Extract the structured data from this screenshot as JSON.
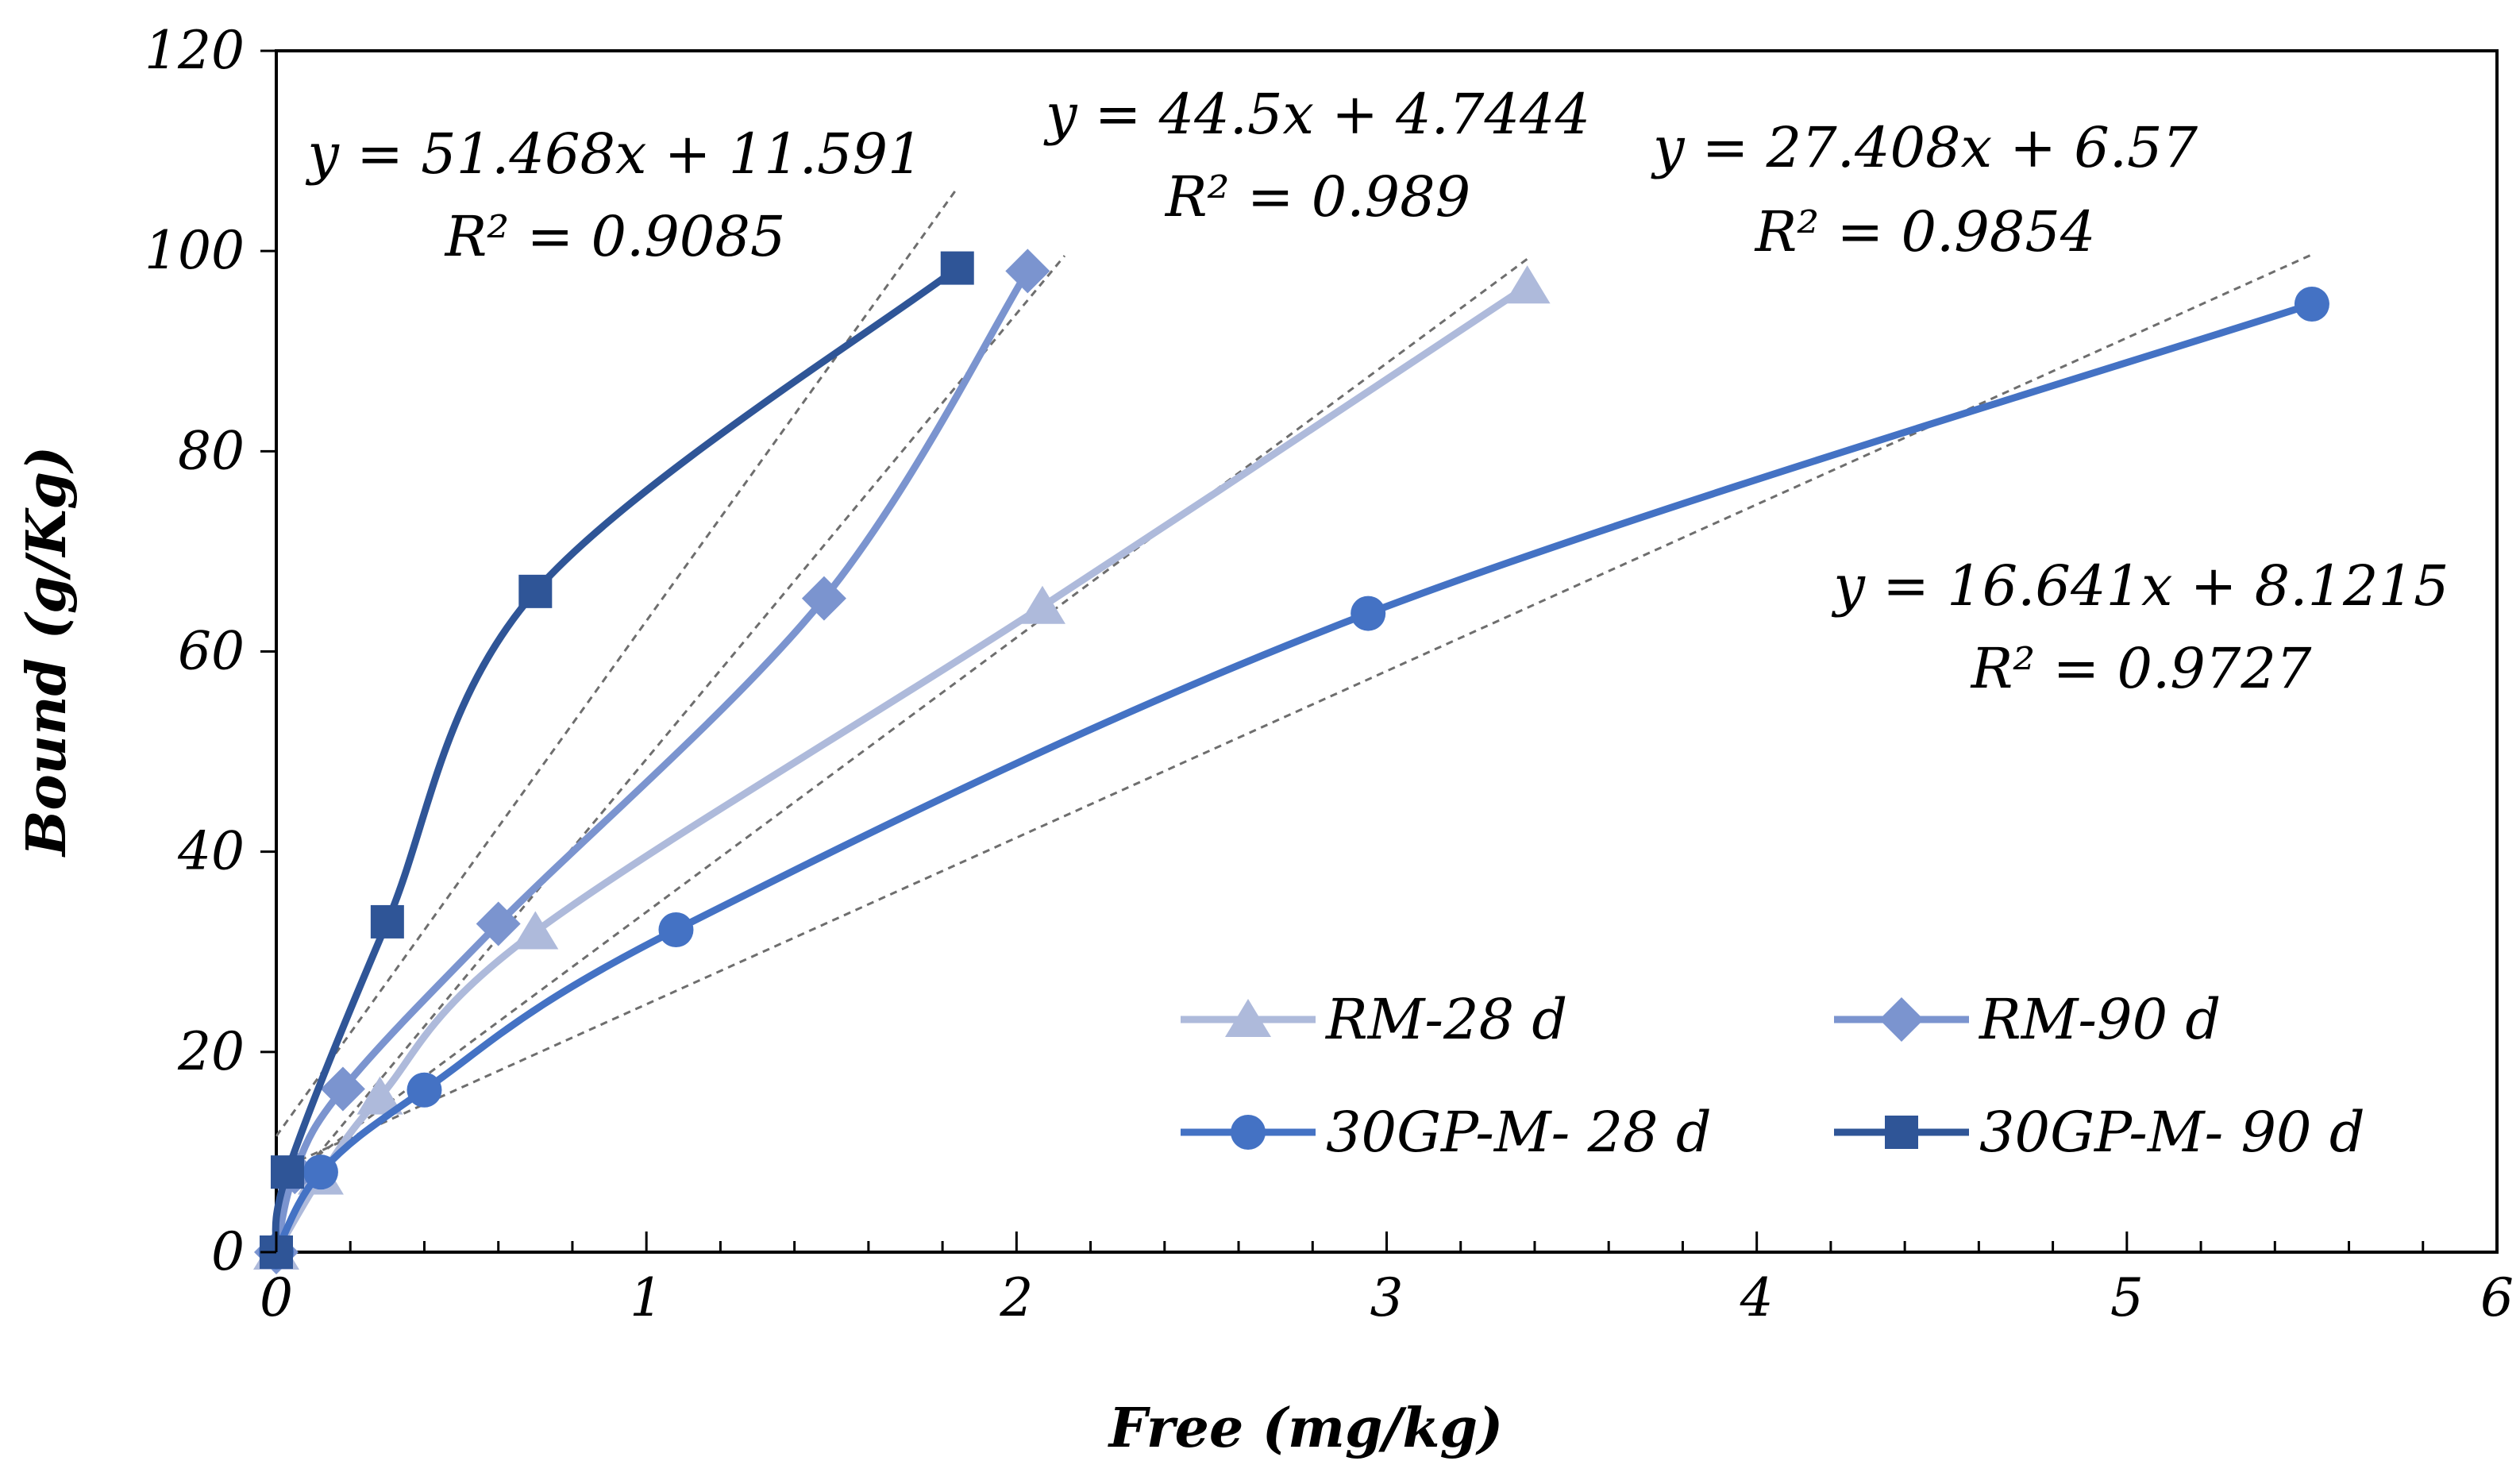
{
  "chart_data": {
    "type": "scatter",
    "title": "",
    "xlabel": "Free (mg/kg)",
    "ylabel": "Bound (g/Kg)",
    "xlim": [
      0,
      6
    ],
    "ylim": [
      0,
      120
    ],
    "x_ticks": [
      "0",
      "1",
      "2",
      "3",
      "4",
      "5",
      "6"
    ],
    "y_ticks": [
      "0",
      "20",
      "40",
      "60",
      "80",
      "100",
      "120"
    ],
    "grid": false,
    "legend_position": "lower-right",
    "series": [
      {
        "name": "RM-28 d",
        "color": "#aebadb",
        "marker": "triangle",
        "x": [
          0,
          0.12,
          0.28,
          0.7,
          2.07,
          3.38
        ],
        "y": [
          0,
          7.5,
          15.5,
          32,
          64.5,
          96.5
        ]
      },
      {
        "name": "RM-90 d",
        "color": "#7b94cf",
        "marker": "diamond",
        "x": [
          0,
          0.05,
          0.18,
          0.6,
          1.48,
          2.03
        ],
        "y": [
          0,
          8,
          16.3,
          32.8,
          65.3,
          98
        ]
      },
      {
        "name": "30GP-M- 28 d",
        "color": "#4472c4",
        "marker": "circle",
        "x": [
          0,
          0.12,
          0.4,
          1.08,
          2.95,
          5.5
        ],
        "y": [
          0,
          8,
          16.2,
          32.2,
          63.8,
          94.7
        ]
      },
      {
        "name": "30GP-M- 90 d",
        "color": "#2f5597",
        "marker": "square",
        "x": [
          0,
          0.03,
          0.3,
          0.7,
          1.84
        ],
        "y": [
          0,
          8,
          33,
          66,
          98.3
        ]
      }
    ],
    "trendlines": [
      {
        "series": "30GP-M- 90 d",
        "slope": 51.468,
        "intercept": 11.591,
        "x_range": [
          0,
          1.84
        ],
        "equation": "y = 51.468x + 11.591",
        "r2": "R² = 0.9085"
      },
      {
        "series": "RM-90 d",
        "slope": 44.5,
        "intercept": 4.7444,
        "x_range": [
          0,
          2.13
        ],
        "equation": "y = 44.5x + 4.7444",
        "r2": "R² = 0.989"
      },
      {
        "series": "RM-28 d",
        "slope": 27.408,
        "intercept": 6.57,
        "x_range": [
          0,
          3.38
        ],
        "equation": "y = 27.408x + 6.57",
        "r2": "R² = 0.9854"
      },
      {
        "series": "30GP-M- 28 d",
        "slope": 16.641,
        "intercept": 8.1215,
        "x_range": [
          0,
          5.5
        ],
        "equation": "y = 16.641x + 8.1215",
        "r2": "R² = 0.9727"
      }
    ]
  }
}
